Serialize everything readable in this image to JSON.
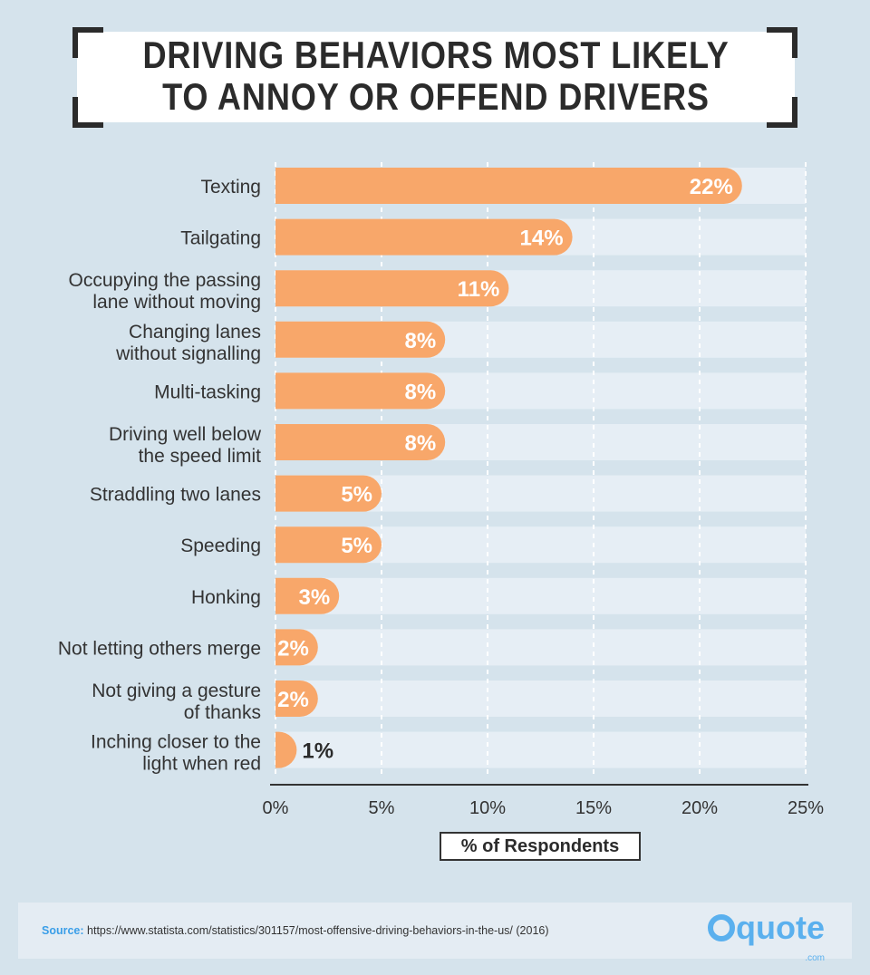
{
  "chart_data": {
    "type": "bar",
    "orientation": "horizontal",
    "title": "DRIVING BEHAVIORS MOST LIKELY TO ANNOY OR OFFEND DRIVERS",
    "xlabel": "% of Respondents",
    "xlim": [
      0,
      25
    ],
    "xticks": [
      "0%",
      "5%",
      "10%",
      "15%",
      "20%",
      "25%"
    ],
    "grid": true,
    "categories": [
      [
        "Texting"
      ],
      [
        "Tailgating"
      ],
      [
        "Occupying the passing",
        "lane without moving"
      ],
      [
        "Changing lanes",
        "without signalling"
      ],
      [
        "Multi-tasking"
      ],
      [
        "Driving well below",
        "the speed limit"
      ],
      [
        "Straddling two lanes"
      ],
      [
        "Speeding"
      ],
      [
        "Honking"
      ],
      [
        "Not letting others merge"
      ],
      [
        "Not giving a gesture",
        "of thanks"
      ],
      [
        "Inching closer to the",
        "light when red"
      ]
    ],
    "values": [
      22,
      14,
      11,
      8,
      8,
      8,
      5,
      5,
      3,
      2,
      2,
      1
    ],
    "data_labels": [
      "22%",
      "14%",
      "11%",
      "8%",
      "8%",
      "8%",
      "5%",
      "5%",
      "3%",
      "2%",
      "2%",
      "1%"
    ],
    "colors": {
      "bar": "#f8a76a",
      "track": "#e6eef5",
      "background": "#d5e3ec"
    }
  },
  "footer": {
    "source_label": "Source:",
    "source_text": "https://www.statista.com/statistics/301157/most-offensive-driving-behaviors-in-the-us/ (2016)",
    "logo_text": "quote",
    "logo_sub": ".com"
  }
}
